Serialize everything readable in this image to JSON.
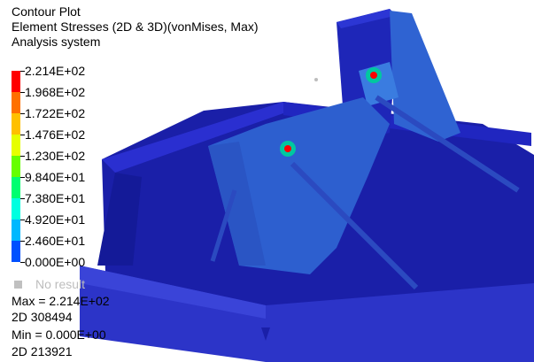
{
  "header": {
    "title": "Contour Plot",
    "subtitle": "Element Stresses (2D & 3D)(vonMises, Max)",
    "system": "Analysis system"
  },
  "legend": {
    "ticks": [
      "2.214E+02",
      "1.968E+02",
      "1.722E+02",
      "1.476E+02",
      "1.230E+02",
      "9.840E+01",
      "7.380E+01",
      "4.920E+01",
      "2.460E+01",
      "0.000E+00"
    ],
    "colors": [
      "#ff0000",
      "#ff7000",
      "#ffc000",
      "#e6ff00",
      "#66ff00",
      "#00ff70",
      "#00ffe0",
      "#00b8ff",
      "#0050ff",
      "#0000c8"
    ],
    "no_result_label": "No result",
    "no_result_color": "#c0c0c0"
  },
  "stats": {
    "max_label": "Max = 2.214E+02",
    "max_element": "2D 308494",
    "min_label": "Min = 0.000E+00",
    "min_element": "2D 213921"
  },
  "model_colors": {
    "base": "#1e24b0",
    "panel": "#2f63d2",
    "hotspot": "#ff0000"
  }
}
